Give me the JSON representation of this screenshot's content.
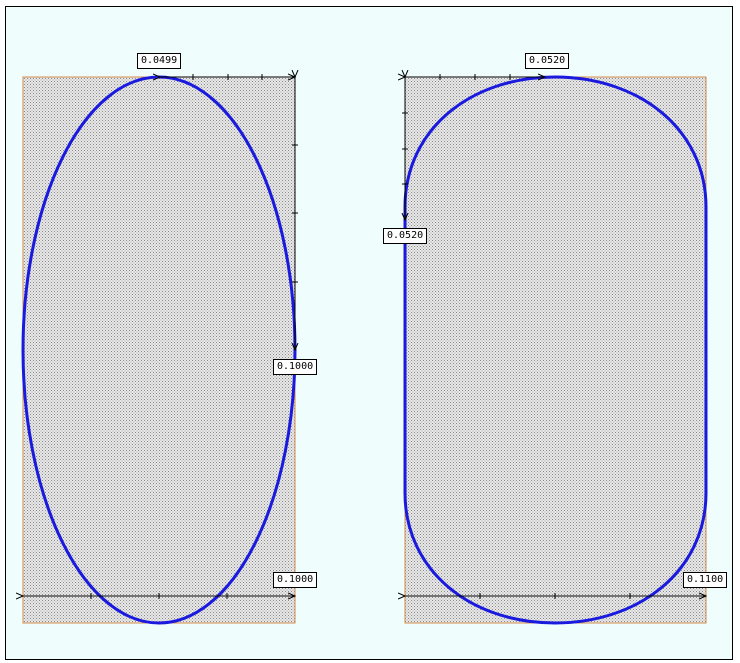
{
  "labels": {
    "left_top": "0.0499",
    "left_right": "0.1000",
    "left_bottom": "0.1000",
    "right_top": "0.0520",
    "right_left": "0.0520",
    "right_bottom": "0.1100"
  },
  "colors": {
    "outline": "#1a1adf",
    "panel_border": "#d08a4a",
    "background": "#effefd",
    "dim_line": "#000000"
  }
}
